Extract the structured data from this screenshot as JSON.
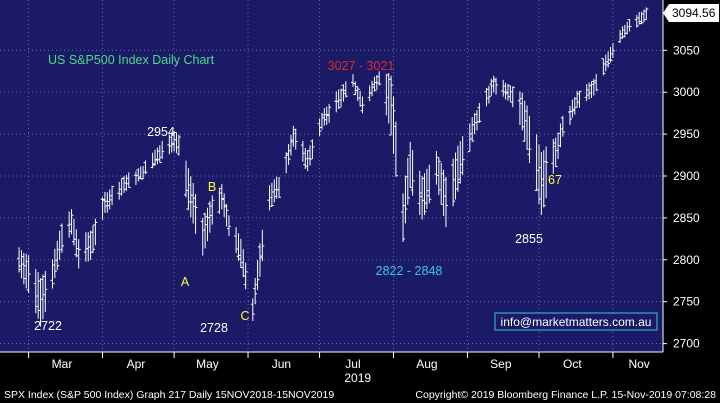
{
  "chart_data": {
    "type": "ohlc",
    "title": "US S&P500 Index Daily Chart",
    "title_color": "#4fd98a",
    "background_color": "#1a1a66",
    "outer_background_color": "#000000",
    "bar_color": "#ffffff",
    "grid": "dotted",
    "ylim": [
      2690,
      3110
    ],
    "y_ticks": [
      2700,
      2750,
      2800,
      2850,
      2900,
      2950,
      3000,
      3050
    ],
    "x_month_labels": [
      "Mar",
      "Apr",
      "May",
      "Jun",
      "Jul",
      "Aug",
      "Sep",
      "Oct",
      "Nov"
    ],
    "x_year_label": "2019",
    "last_price": "3094.56",
    "annotations": [
      {
        "text": "2722",
        "color": "#ffffff"
      },
      {
        "text": "2954",
        "color": "#ffffff"
      },
      {
        "text": "A",
        "color": "#ffff33"
      },
      {
        "text": "B",
        "color": "#ffff33"
      },
      {
        "text": "2728",
        "color": "#ffffff"
      },
      {
        "text": "C",
        "color": "#ffff33"
      },
      {
        "text": "3027 - 3021",
        "color": "#e02a2a"
      },
      {
        "text": "2822 -  2848",
        "color": "#39c8d8"
      },
      {
        "text": "2855",
        "color": "#ffffff"
      },
      {
        "text": "67",
        "color": "#ffff33"
      }
    ],
    "watermark": "info@marketmatters.com.au",
    "ohlc_path": [
      {
        "date": "2019-02-25",
        "high": 2815,
        "low": 2785
      },
      {
        "date": "2019-03-01",
        "high": 2805,
        "low": 2760
      },
      {
        "date": "2019-03-06",
        "high": 2780,
        "low": 2722
      },
      {
        "date": "2019-03-11",
        "high": 2800,
        "low": 2765
      },
      {
        "date": "2019-03-15",
        "high": 2845,
        "low": 2810
      },
      {
        "date": "2019-03-19",
        "high": 2860,
        "low": 2830
      },
      {
        "date": "2019-03-22",
        "high": 2825,
        "low": 2790
      },
      {
        "date": "2019-03-27",
        "high": 2835,
        "low": 2800
      },
      {
        "date": "2019-04-02",
        "high": 2880,
        "low": 2855
      },
      {
        "date": "2019-04-10",
        "high": 2900,
        "low": 2880
      },
      {
        "date": "2019-04-17",
        "high": 2910,
        "low": 2895
      },
      {
        "date": "2019-04-24",
        "high": 2935,
        "low": 2915
      },
      {
        "date": "2019-04-30",
        "high": 2954,
        "low": 2930
      },
      {
        "date": "2019-05-03",
        "high": 2950,
        "low": 2925
      },
      {
        "date": "2019-05-07",
        "high": 2910,
        "low": 2860
      },
      {
        "date": "2019-05-13",
        "high": 2850,
        "low": 2805
      },
      {
        "date": "2019-05-17",
        "high": 2875,
        "low": 2840
      },
      {
        "date": "2019-05-21",
        "high": 2890,
        "low": 2860
      },
      {
        "date": "2019-05-24",
        "high": 2855,
        "low": 2830
      },
      {
        "date": "2019-05-29",
        "high": 2825,
        "low": 2790
      },
      {
        "date": "2019-06-03",
        "high": 2755,
        "low": 2728
      },
      {
        "date": "2019-06-06",
        "high": 2820,
        "low": 2780
      },
      {
        "date": "2019-06-10",
        "high": 2890,
        "low": 2860
      },
      {
        "date": "2019-06-14",
        "high": 2900,
        "low": 2875
      },
      {
        "date": "2019-06-20",
        "high": 2960,
        "low": 2935
      },
      {
        "date": "2019-06-26",
        "high": 2930,
        "low": 2905
      },
      {
        "date": "2019-07-02",
        "high": 2975,
        "low": 2955
      },
      {
        "date": "2019-07-08",
        "high": 3000,
        "low": 2975
      },
      {
        "date": "2019-07-15",
        "high": 3020,
        "low": 3005
      },
      {
        "date": "2019-07-19",
        "high": 2995,
        "low": 2975
      },
      {
        "date": "2019-07-26",
        "high": 3027,
        "low": 3010
      },
      {
        "date": "2019-07-31",
        "high": 3021,
        "low": 2950
      },
      {
        "date": "2019-08-05",
        "high": 2880,
        "low": 2822
      },
      {
        "date": "2019-08-08",
        "high": 2940,
        "low": 2885
      },
      {
        "date": "2019-08-13",
        "high": 2900,
        "low": 2848
      },
      {
        "date": "2019-08-19",
        "high": 2930,
        "low": 2890
      },
      {
        "date": "2019-08-23",
        "high": 2900,
        "low": 2840
      },
      {
        "date": "2019-08-28",
        "high": 2935,
        "low": 2880
      },
      {
        "date": "2019-09-04",
        "high": 2975,
        "low": 2950
      },
      {
        "date": "2019-09-12",
        "high": 3020,
        "low": 3000
      },
      {
        "date": "2019-09-19",
        "high": 3010,
        "low": 2990
      },
      {
        "date": "2019-09-24",
        "high": 3000,
        "low": 2955
      },
      {
        "date": "2019-10-02",
        "high": 2930,
        "low": 2855
      },
      {
        "date": "2019-10-08",
        "high": 2945,
        "low": 2910
      },
      {
        "date": "2019-10-11",
        "high": 2970,
        "low": 2945
      },
      {
        "date": "2019-10-17",
        "high": 3000,
        "low": 2980
      },
      {
        "date": "2019-10-24",
        "high": 3015,
        "low": 2995
      },
      {
        "date": "2019-10-29",
        "high": 3045,
        "low": 3025
      },
      {
        "date": "2019-11-05",
        "high": 3080,
        "low": 3065
      },
      {
        "date": "2019-11-15",
        "high": 3100,
        "low": 3085
      }
    ]
  },
  "footer": {
    "left": "SPX Index (S&P 500 Index) Graph 217  Daily 15NOV2018-15NOV2019",
    "right": "Copyright© 2019 Bloomberg Finance L.P.    15-Nov-2019 07:08:28"
  }
}
